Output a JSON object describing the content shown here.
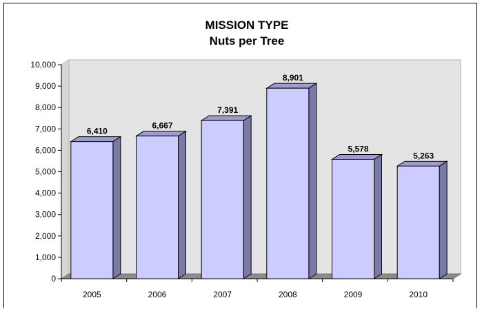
{
  "chart_data": {
    "type": "bar",
    "title": "MISSION TYPE",
    "subtitle": "Nuts per Tree",
    "xlabel": "",
    "ylabel": "",
    "categories": [
      "2005",
      "2006",
      "2007",
      "2008",
      "2009",
      "2010"
    ],
    "values": [
      6410,
      6667,
      7391,
      8901,
      5578,
      5263
    ],
    "value_labels": [
      "6,410",
      "6,667",
      "7,391",
      "8,901",
      "5,578",
      "5,263"
    ],
    "ylim": [
      0,
      10000
    ],
    "yticks": [
      0,
      1000,
      2000,
      3000,
      4000,
      5000,
      6000,
      7000,
      8000,
      9000,
      10000
    ],
    "ytick_labels": [
      "0",
      "1,000",
      "2,000",
      "3,000",
      "4,000",
      "5,000",
      "6,000",
      "7,000",
      "8,000",
      "9,000",
      "10,000"
    ],
    "grid": false,
    "legend": "none",
    "style": "3d-column",
    "colors": {
      "bar_front": "#ccccff",
      "bar_side": "#7a7aa6",
      "bar_top": "#9c9cd0",
      "floor": "#8c8c8c",
      "back_wall": "#e4e4e4",
      "axis": "#000000"
    }
  }
}
